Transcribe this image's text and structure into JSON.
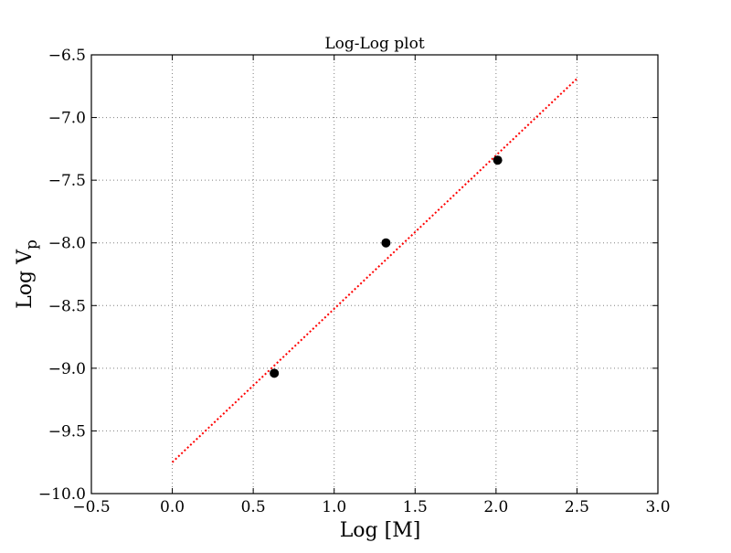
{
  "chart_data": {
    "type": "scatter",
    "title": "Log-Log plot",
    "xlabel": "Log [M]",
    "ylabel_main": "Log V",
    "ylabel_sub": "p",
    "xlim": [
      -0.5,
      3.0
    ],
    "ylim": [
      -10.0,
      -6.5
    ],
    "xticks": [
      -0.5,
      0.0,
      0.5,
      1.0,
      1.5,
      2.0,
      2.5,
      3.0
    ],
    "xtick_labels": [
      "−0.5",
      "0.0",
      "0.5",
      "1.0",
      "1.5",
      "2.0",
      "2.5",
      "3.0"
    ],
    "yticks": [
      -10.0,
      -9.5,
      -9.0,
      -8.5,
      -8.0,
      -7.5,
      -7.0,
      -6.5
    ],
    "ytick_labels": [
      "−10.0",
      "−9.5",
      "−9.0",
      "−8.5",
      "−8.0",
      "−7.5",
      "−7.0",
      "−6.5"
    ],
    "grid": true,
    "series": [
      {
        "kind": "scatter",
        "color": "#000000",
        "points": [
          {
            "x": 0.63,
            "y": -9.04
          },
          {
            "x": 1.32,
            "y": -8.0
          },
          {
            "x": 2.01,
            "y": -7.34
          }
        ]
      },
      {
        "kind": "line",
        "style": "dotted",
        "color": "#ff0000",
        "points": [
          {
            "x": 0.0,
            "y": -9.75
          },
          {
            "x": 2.5,
            "y": -6.69
          }
        ]
      }
    ]
  }
}
